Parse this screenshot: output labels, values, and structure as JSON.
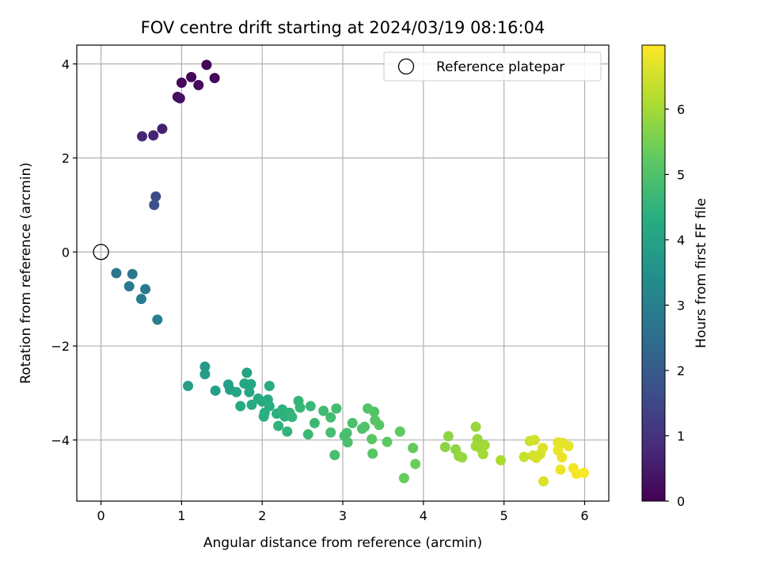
{
  "chart_data": {
    "type": "scatter",
    "title": "FOV centre drift starting at 2024/03/19 08:16:04",
    "xlabel": "Angular distance from reference (arcmin)",
    "ylabel": "Rotation from reference (arcmin)",
    "xlim": [
      -0.3,
      6.3
    ],
    "ylim": [
      -5.3,
      4.4
    ],
    "xticks": [
      0,
      1,
      2,
      3,
      4,
      5,
      6
    ],
    "yticks": [
      -4,
      -2,
      0,
      2,
      4
    ],
    "grid": true,
    "legend": {
      "placement": "upper-right",
      "entries": [
        "Reference platepar"
      ]
    },
    "reference_point": {
      "x": 0,
      "y": 0
    },
    "colorbar": {
      "label": "Hours from first FF file",
      "range": [
        0,
        6.98
      ],
      "ticks": [
        0,
        1,
        2,
        3,
        4,
        5,
        6
      ],
      "colormap": "viridis"
    },
    "points": [
      {
        "x": 1.31,
        "y": 3.98,
        "t": 0.05
      },
      {
        "x": 1.12,
        "y": 3.72,
        "t": 0.1
      },
      {
        "x": 1.41,
        "y": 3.7,
        "t": 0.12
      },
      {
        "x": 1.0,
        "y": 3.6,
        "t": 0.15
      },
      {
        "x": 1.21,
        "y": 3.55,
        "t": 0.2
      },
      {
        "x": 0.95,
        "y": 3.3,
        "t": 0.28
      },
      {
        "x": 0.98,
        "y": 3.27,
        "t": 0.3
      },
      {
        "x": 0.76,
        "y": 2.62,
        "t": 0.6
      },
      {
        "x": 0.65,
        "y": 2.48,
        "t": 0.7
      },
      {
        "x": 0.51,
        "y": 2.46,
        "t": 0.75
      },
      {
        "x": 0.68,
        "y": 1.18,
        "t": 1.6
      },
      {
        "x": 0.66,
        "y": 1.0,
        "t": 1.7
      },
      {
        "x": 0.19,
        "y": -0.45,
        "t": 2.7
      },
      {
        "x": 0.39,
        "y": -0.47,
        "t": 2.75
      },
      {
        "x": 0.35,
        "y": -0.73,
        "t": 2.8
      },
      {
        "x": 0.55,
        "y": -0.79,
        "t": 2.85
      },
      {
        "x": 0.5,
        "y": -1.0,
        "t": 2.9
      },
      {
        "x": 0.7,
        "y": -1.44,
        "t": 3.0
      },
      {
        "x": 1.29,
        "y": -2.44,
        "t": 3.8
      },
      {
        "x": 1.29,
        "y": -2.6,
        "t": 3.85
      },
      {
        "x": 1.08,
        "y": -2.85,
        "t": 3.9
      },
      {
        "x": 1.42,
        "y": -2.95,
        "t": 3.95
      },
      {
        "x": 1.58,
        "y": -2.82,
        "t": 4.0
      },
      {
        "x": 1.6,
        "y": -2.93,
        "t": 4.0
      },
      {
        "x": 1.68,
        "y": -2.98,
        "t": 4.05
      },
      {
        "x": 1.78,
        "y": -2.8,
        "t": 4.1
      },
      {
        "x": 1.81,
        "y": -2.57,
        "t": 4.1
      },
      {
        "x": 1.84,
        "y": -2.98,
        "t": 4.15
      },
      {
        "x": 1.86,
        "y": -2.81,
        "t": 4.15
      },
      {
        "x": 1.73,
        "y": -3.28,
        "t": 4.2
      },
      {
        "x": 1.87,
        "y": -3.25,
        "t": 4.2
      },
      {
        "x": 1.95,
        "y": -3.12,
        "t": 4.25
      },
      {
        "x": 2.0,
        "y": -3.18,
        "t": 4.25
      },
      {
        "x": 2.07,
        "y": -3.14,
        "t": 4.3
      },
      {
        "x": 2.09,
        "y": -2.85,
        "t": 4.3
      },
      {
        "x": 2.03,
        "y": -3.42,
        "t": 4.35
      },
      {
        "x": 2.09,
        "y": -3.28,
        "t": 4.35
      },
      {
        "x": 2.02,
        "y": -3.5,
        "t": 4.4
      },
      {
        "x": 2.18,
        "y": -3.44,
        "t": 4.4
      },
      {
        "x": 2.25,
        "y": -3.35,
        "t": 4.45
      },
      {
        "x": 2.28,
        "y": -3.5,
        "t": 4.45
      },
      {
        "x": 2.2,
        "y": -3.7,
        "t": 4.5
      },
      {
        "x": 2.34,
        "y": -3.42,
        "t": 4.5
      },
      {
        "x": 2.37,
        "y": -3.51,
        "t": 4.55
      },
      {
        "x": 2.31,
        "y": -3.82,
        "t": 4.55
      },
      {
        "x": 2.45,
        "y": -3.17,
        "t": 4.6
      },
      {
        "x": 2.47,
        "y": -3.31,
        "t": 4.6
      },
      {
        "x": 2.6,
        "y": -3.28,
        "t": 4.65
      },
      {
        "x": 2.57,
        "y": -3.88,
        "t": 4.7
      },
      {
        "x": 2.65,
        "y": -3.64,
        "t": 4.7
      },
      {
        "x": 2.76,
        "y": -3.38,
        "t": 4.75
      },
      {
        "x": 2.85,
        "y": -3.52,
        "t": 4.8
      },
      {
        "x": 2.92,
        "y": -3.33,
        "t": 4.8
      },
      {
        "x": 2.85,
        "y": -3.84,
        "t": 4.85
      },
      {
        "x": 2.9,
        "y": -4.32,
        "t": 4.85
      },
      {
        "x": 3.02,
        "y": -3.91,
        "t": 4.9
      },
      {
        "x": 3.05,
        "y": -3.85,
        "t": 4.9
      },
      {
        "x": 3.06,
        "y": -4.05,
        "t": 4.95
      },
      {
        "x": 3.12,
        "y": -3.64,
        "t": 4.95
      },
      {
        "x": 3.24,
        "y": -3.76,
        "t": 5.0
      },
      {
        "x": 3.27,
        "y": -3.72,
        "t": 5.0
      },
      {
        "x": 3.31,
        "y": -3.33,
        "t": 5.05
      },
      {
        "x": 3.39,
        "y": -3.4,
        "t": 5.05
      },
      {
        "x": 3.4,
        "y": -3.58,
        "t": 5.1
      },
      {
        "x": 3.45,
        "y": -3.68,
        "t": 5.1
      },
      {
        "x": 3.36,
        "y": -3.98,
        "t": 5.15
      },
      {
        "x": 3.37,
        "y": -4.29,
        "t": 5.15
      },
      {
        "x": 3.55,
        "y": -4.04,
        "t": 5.2
      },
      {
        "x": 3.71,
        "y": -3.82,
        "t": 5.25
      },
      {
        "x": 3.87,
        "y": -4.17,
        "t": 5.3
      },
      {
        "x": 3.9,
        "y": -4.51,
        "t": 5.35
      },
      {
        "x": 3.76,
        "y": -4.81,
        "t": 5.35
      },
      {
        "x": 4.27,
        "y": -4.15,
        "t": 5.75
      },
      {
        "x": 4.31,
        "y": -3.92,
        "t": 5.75
      },
      {
        "x": 4.4,
        "y": -4.2,
        "t": 5.8
      },
      {
        "x": 4.44,
        "y": -4.34,
        "t": 5.8
      },
      {
        "x": 4.48,
        "y": -4.37,
        "t": 5.85
      },
      {
        "x": 4.65,
        "y": -3.72,
        "t": 5.9
      },
      {
        "x": 4.67,
        "y": -3.98,
        "t": 5.9
      },
      {
        "x": 4.65,
        "y": -4.13,
        "t": 5.95
      },
      {
        "x": 4.72,
        "y": -4.2,
        "t": 5.95
      },
      {
        "x": 4.74,
        "y": -4.3,
        "t": 6.0
      },
      {
        "x": 4.76,
        "y": -4.11,
        "t": 6.0
      },
      {
        "x": 4.96,
        "y": -4.43,
        "t": 6.1
      },
      {
        "x": 5.25,
        "y": -4.36,
        "t": 6.4
      },
      {
        "x": 5.32,
        "y": -4.02,
        "t": 6.45
      },
      {
        "x": 5.38,
        "y": -4.0,
        "t": 6.5
      },
      {
        "x": 5.36,
        "y": -4.33,
        "t": 6.5
      },
      {
        "x": 5.4,
        "y": -4.38,
        "t": 6.55
      },
      {
        "x": 5.45,
        "y": -4.3,
        "t": 6.55
      },
      {
        "x": 5.48,
        "y": -4.17,
        "t": 6.6
      },
      {
        "x": 5.49,
        "y": -4.88,
        "t": 6.6
      },
      {
        "x": 5.67,
        "y": -4.05,
        "t": 6.7
      },
      {
        "x": 5.73,
        "y": -4.06,
        "t": 6.7
      },
      {
        "x": 5.67,
        "y": -4.22,
        "t": 6.75
      },
      {
        "x": 5.8,
        "y": -4.13,
        "t": 6.75
      },
      {
        "x": 5.72,
        "y": -4.37,
        "t": 6.8
      },
      {
        "x": 5.7,
        "y": -4.63,
        "t": 6.8
      },
      {
        "x": 5.86,
        "y": -4.6,
        "t": 6.85
      },
      {
        "x": 5.9,
        "y": -4.72,
        "t": 6.9
      },
      {
        "x": 5.99,
        "y": -4.7,
        "t": 6.95
      }
    ]
  }
}
